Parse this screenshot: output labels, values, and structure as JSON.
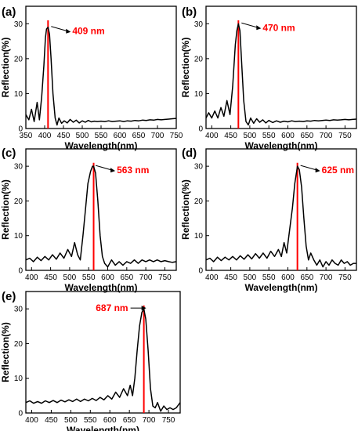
{
  "colors": {
    "curve": "#000000",
    "marker": "#ff0000",
    "axis": "#000000"
  },
  "chart_data": [
    {
      "type": "line",
      "panel_label": "(a)",
      "xlabel": "Wavelength(nm)",
      "ylabel": "Reflection(%)",
      "xlim": [
        350,
        750
      ],
      "ylim": [
        0,
        35
      ],
      "xticks": [
        350,
        400,
        450,
        500,
        550,
        600,
        650,
        700,
        750
      ],
      "yticks": [
        0,
        10,
        20,
        30
      ],
      "annotation": "409 nm",
      "peak_nm": 409,
      "series": [
        {
          "x": [
            350,
            358,
            365,
            372,
            380,
            386,
            392,
            398,
            402,
            405,
            409,
            413,
            417,
            422,
            428,
            433,
            438,
            445,
            452,
            460,
            468,
            476,
            484,
            492,
            500,
            508,
            516,
            524,
            532,
            540,
            550,
            560,
            570,
            580,
            590,
            600,
            610,
            620,
            630,
            640,
            650,
            660,
            670,
            680,
            690,
            700,
            710,
            720,
            730,
            740,
            750
          ],
          "y": [
            4,
            2.5,
            5.5,
            2,
            7.5,
            2.5,
            9,
            18,
            26,
            28.5,
            29,
            27,
            20,
            10,
            3,
            1,
            3,
            1.5,
            2.2,
            1.6,
            2.6,
            1.8,
            2.4,
            1.6,
            2.2,
            1.8,
            2.3,
            1.9,
            2.1,
            2,
            2.1,
            2,
            2.2,
            2,
            2.1,
            2.2,
            2,
            2.2,
            2.1,
            2.3,
            2.2,
            2.4,
            2.3,
            2.5,
            2.4,
            2.6,
            2.5,
            2.6,
            2.7,
            2.8,
            2.9
          ]
        }
      ]
    },
    {
      "type": "line",
      "panel_label": "(b)",
      "xlabel": "Wavelength(nm)",
      "ylabel": "Reflection(%)",
      "xlim": [
        385,
        780
      ],
      "ylim": [
        0,
        35
      ],
      "xticks": [
        400,
        450,
        500,
        550,
        600,
        650,
        700,
        750
      ],
      "yticks": [
        0,
        10,
        20,
        30
      ],
      "annotation": "470 nm",
      "peak_nm": 470,
      "series": [
        {
          "x": [
            385,
            392,
            400,
            408,
            416,
            424,
            432,
            440,
            448,
            455,
            462,
            466,
            470,
            474,
            478,
            484,
            490,
            496,
            502,
            510,
            518,
            526,
            534,
            542,
            550,
            560,
            570,
            580,
            590,
            600,
            610,
            620,
            630,
            640,
            650,
            660,
            670,
            680,
            690,
            700,
            710,
            720,
            730,
            740,
            750,
            760,
            770,
            780
          ],
          "y": [
            3,
            4.5,
            3,
            5,
            3,
            6,
            3.5,
            8,
            4,
            12,
            24,
            28,
            30,
            28,
            20,
            8,
            2,
            1,
            3,
            1.5,
            2.8,
            1.8,
            2.5,
            1.6,
            2.3,
            1.7,
            2.2,
            1.8,
            2.1,
            1.9,
            2.2,
            2,
            2.1,
            2,
            2.2,
            2.1,
            2.3,
            2.2,
            2.3,
            2.4,
            2.3,
            2.5,
            2.4,
            2.5,
            2.6,
            2.5,
            2.6,
            2.7
          ]
        }
      ]
    },
    {
      "type": "line",
      "panel_label": "(c)",
      "xlabel": "Wavelength(nm)",
      "ylabel": "Reflection(%)",
      "xlim": [
        385,
        780
      ],
      "ylim": [
        0,
        35
      ],
      "xticks": [
        400,
        450,
        500,
        550,
        600,
        650,
        700,
        750
      ],
      "yticks": [
        0,
        10,
        20,
        30
      ],
      "annotation": "563 nm",
      "peak_nm": 563,
      "series": [
        {
          "x": [
            385,
            395,
            405,
            415,
            425,
            435,
            445,
            455,
            465,
            475,
            485,
            495,
            505,
            513,
            521,
            528,
            535,
            542,
            548,
            555,
            560,
            563,
            568,
            574,
            580,
            586,
            592,
            600,
            610,
            620,
            630,
            640,
            650,
            660,
            670,
            680,
            690,
            700,
            710,
            720,
            730,
            740,
            750,
            760,
            770,
            780
          ],
          "y": [
            3,
            3.5,
            2.5,
            3.8,
            2.8,
            4,
            3,
            4.5,
            3.2,
            5,
            3.5,
            6,
            4,
            8,
            4.5,
            3,
            10,
            18,
            25,
            28.5,
            30,
            30,
            28,
            20,
            10,
            4,
            2,
            1,
            3,
            1.5,
            2.5,
            1.5,
            2.5,
            2,
            3,
            2,
            3,
            2.5,
            3,
            2.5,
            3,
            2.5,
            2.8,
            2.5,
            2.3,
            2.5
          ]
        }
      ]
    },
    {
      "type": "line",
      "panel_label": "(d)",
      "xlabel": "Wavelength(nm)",
      "ylabel": "Reflection(%)",
      "xlim": [
        385,
        780
      ],
      "ylim": [
        0,
        35
      ],
      "xticks": [
        400,
        450,
        500,
        550,
        600,
        650,
        700,
        750
      ],
      "yticks": [
        0,
        10,
        20,
        30
      ],
      "annotation": "625 nm",
      "peak_nm": 625,
      "series": [
        {
          "x": [
            385,
            395,
            405,
            415,
            425,
            435,
            445,
            455,
            465,
            475,
            485,
            495,
            505,
            515,
            525,
            535,
            545,
            555,
            565,
            575,
            583,
            590,
            597,
            605,
            612,
            618,
            625,
            630,
            636,
            642,
            648,
            654,
            660,
            668,
            676,
            684,
            692,
            700,
            708,
            716,
            724,
            732,
            740,
            748,
            756,
            764,
            772,
            780
          ],
          "y": [
            3,
            3.5,
            2.5,
            3.8,
            2.8,
            3.8,
            3,
            4,
            3,
            4.2,
            3.2,
            4.5,
            3.3,
            4.8,
            3.5,
            5,
            3.5,
            5.5,
            4,
            6,
            4,
            8,
            5,
            12,
            18,
            25,
            30,
            29,
            24,
            15,
            7,
            3,
            5,
            3,
            1.5,
            3,
            1,
            2.5,
            1.5,
            3,
            2,
            1.5,
            3,
            2,
            2.5,
            1.5,
            2,
            2
          ]
        }
      ]
    },
    {
      "type": "line",
      "panel_label": "(e)",
      "xlabel": "Wavelength(nm)",
      "ylabel": "Reflection(%)",
      "xlim": [
        385,
        780
      ],
      "ylim": [
        0,
        35
      ],
      "xticks": [
        400,
        450,
        500,
        550,
        600,
        650,
        700,
        750
      ],
      "yticks": [
        0,
        10,
        20,
        30
      ],
      "annotation": "687 nm",
      "peak_nm": 687,
      "series": [
        {
          "x": [
            385,
            395,
            405,
            415,
            425,
            435,
            445,
            455,
            465,
            475,
            485,
            495,
            505,
            515,
            525,
            535,
            545,
            555,
            565,
            575,
            585,
            595,
            605,
            615,
            625,
            635,
            645,
            652,
            658,
            664,
            670,
            676,
            682,
            687,
            692,
            698,
            704,
            710,
            716,
            722,
            730,
            738,
            746,
            754,
            762,
            770,
            780
          ],
          "y": [
            3,
            3.5,
            2.8,
            3.3,
            2.8,
            3.5,
            3,
            3.6,
            3,
            3.7,
            3.2,
            3.8,
            3.3,
            4,
            3.3,
            4,
            3.5,
            4.2,
            3.6,
            4.5,
            3.8,
            5,
            4,
            6,
            4.5,
            7,
            5,
            8,
            5,
            10,
            18,
            25,
            29,
            30,
            27,
            18,
            7,
            2,
            1.5,
            3,
            0.5,
            2,
            1,
            1.5,
            1,
            1.5,
            3
          ]
        }
      ]
    }
  ]
}
